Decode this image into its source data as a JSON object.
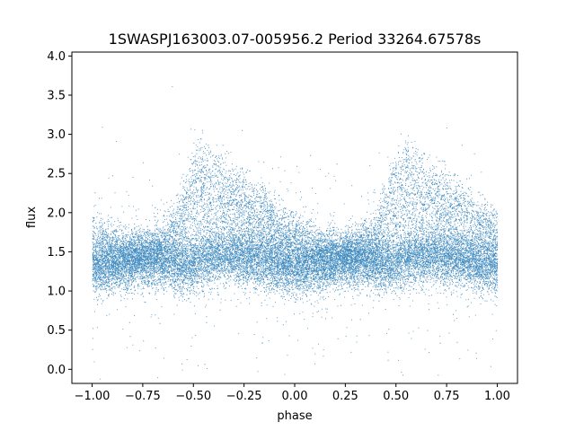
{
  "chart_data": {
    "type": "scatter",
    "title": "1SWASPJ163003.07-005956.2 Period 33264.67578s",
    "xlabel": "phase",
    "ylabel": "flux",
    "xlim": [
      -1.1,
      1.1
    ],
    "ylim": [
      -0.18,
      4.05
    ],
    "x_ticks": [
      -1.0,
      -0.75,
      -0.5,
      -0.25,
      0.0,
      0.25,
      0.5,
      0.75,
      1.0
    ],
    "x_tick_labels": [
      "−1.00",
      "−0.75",
      "−0.50",
      "−0.25",
      "0.00",
      "0.25",
      "0.50",
      "0.75",
      "1.00"
    ],
    "y_ticks": [
      0.0,
      0.5,
      1.0,
      1.5,
      2.0,
      2.5,
      3.0,
      3.5,
      4.0
    ],
    "y_tick_labels": [
      "0.0",
      "0.5",
      "1.0",
      "1.5",
      "2.0",
      "2.5",
      "3.0",
      "3.5",
      "4.0"
    ],
    "grid": false,
    "legend": "none",
    "point_color": "#1f77b4",
    "phase_range": [
      -1.0,
      1.0
    ],
    "profile": {
      "x": [
        0.0,
        0.05,
        0.1,
        0.15,
        0.2,
        0.25,
        0.3,
        0.35,
        0.4,
        0.45,
        0.5,
        0.55,
        0.6,
        0.65,
        0.7,
        0.75,
        0.8,
        0.85,
        0.9,
        0.95,
        1.0
      ],
      "base_y": [
        1.3,
        1.3,
        1.32,
        1.35,
        1.38,
        1.4,
        1.4,
        1.38,
        1.35,
        1.33,
        1.35,
        1.4,
        1.43,
        1.45,
        1.45,
        1.43,
        1.4,
        1.38,
        1.35,
        1.33,
        1.3
      ],
      "upper_y": [
        1.85,
        1.75,
        1.65,
        1.6,
        1.55,
        1.55,
        1.6,
        1.7,
        1.9,
        2.3,
        2.65,
        2.8,
        2.7,
        2.55,
        2.45,
        2.4,
        2.3,
        2.2,
        2.05,
        1.95,
        1.85
      ]
    }
  }
}
